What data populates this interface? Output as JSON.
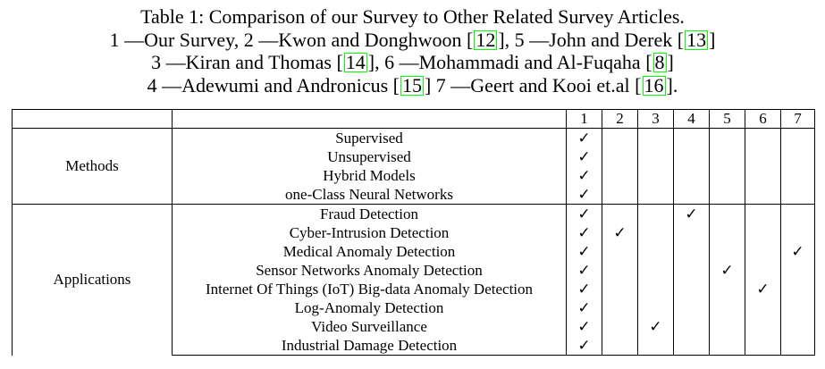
{
  "caption": {
    "line1": "Table 1: Comparison of our Survey to Other Related Survey Articles.",
    "line2": [
      {
        "t": "1 —Our Survey, 2 —Kwon and Donghwoon "
      },
      {
        "r": "12"
      },
      {
        "t": ", 5 —John and Derek "
      },
      {
        "r": "13"
      }
    ],
    "line3": [
      {
        "t": "3 —Kiran and Thomas "
      },
      {
        "r": "14"
      },
      {
        "t": ", 6 —Mohammadi and Al-Fuqaha "
      },
      {
        "r": "8"
      }
    ],
    "line4": [
      {
        "t": "4 —Adewumi and Andronicus "
      },
      {
        "r": "15"
      },
      {
        "t": " 7 —Geert and Kooi et.al "
      },
      {
        "r": "16"
      },
      {
        "t": "."
      }
    ]
  },
  "table": {
    "columns": [
      "1",
      "2",
      "3",
      "4",
      "5",
      "6",
      "7"
    ],
    "check_symbol": "✓",
    "groups": [
      {
        "label": "Methods",
        "rows": [
          {
            "label": "Supervised",
            "checks": [
              1
            ]
          },
          {
            "label": "Unsupervised",
            "checks": [
              1
            ]
          },
          {
            "label": "Hybrid Models",
            "checks": [
              1
            ]
          },
          {
            "label": "one-Class Neural Networks",
            "checks": [
              1
            ]
          }
        ]
      },
      {
        "label": "Applications",
        "rows": [
          {
            "label": "Fraud Detection",
            "checks": [
              1,
              4
            ]
          },
          {
            "label": "Cyber-Intrusion Detection",
            "checks": [
              1,
              2
            ]
          },
          {
            "label": "Medical Anomaly Detection",
            "checks": [
              1,
              7
            ]
          },
          {
            "label": "Sensor Networks Anomaly Detection",
            "checks": [
              1,
              5
            ]
          },
          {
            "label": "Internet Of Things (IoT) Big-data Anomaly Detection",
            "checks": [
              1,
              6
            ]
          },
          {
            "label": "Log-Anomaly Detection",
            "checks": [
              1
            ]
          },
          {
            "label": "Video Surveillance",
            "checks": [
              1,
              3
            ]
          },
          {
            "label": "Industrial Damage Detection",
            "checks": [
              1
            ]
          }
        ]
      }
    ]
  }
}
